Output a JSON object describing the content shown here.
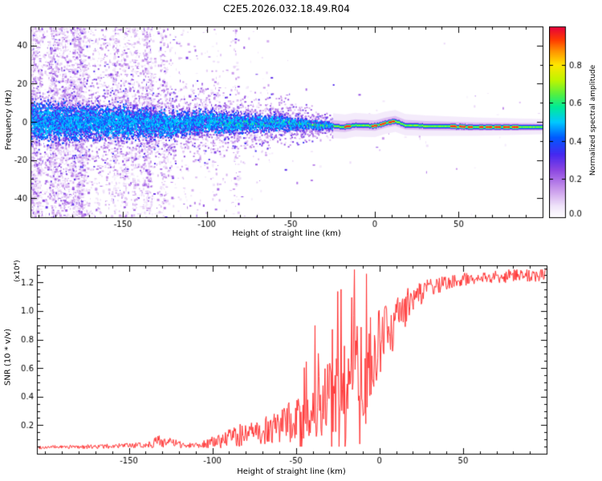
{
  "title": "C2E5.2026.032.18.49.R04",
  "colors": {
    "background": "#ffffff",
    "axis": "#000000",
    "snr_line": "#ff3030"
  },
  "chart_data": [
    {
      "type": "heatmap",
      "title": "C2E5.2026.032.18.49.R04",
      "xlabel": "Height of straight line (km)",
      "ylabel": "Frequency (Hz)",
      "xlim": [
        -205,
        100
      ],
      "ylim": [
        -50,
        50
      ],
      "xticks": [
        -150,
        -100,
        -50,
        0,
        50
      ],
      "yticks": [
        -40,
        -20,
        0,
        20,
        40
      ],
      "grid": false,
      "colorbar": {
        "label": "Normalized spectral amplitude",
        "ticks": [
          0.0,
          0.2,
          0.4,
          0.6,
          0.8
        ],
        "range": [
          0,
          1
        ],
        "position": "right"
      },
      "description": "Spectrogram: broadband purple noise at far negative heights narrowing into a coherent near-0 Hz trace that becomes a thin green line with red high-amplitude dashes at positive heights.",
      "signal": {
        "center_freq_points": [
          [
            -205,
            0.5
          ],
          [
            -150,
            0
          ],
          [
            -120,
            -1
          ],
          [
            -100,
            0.5
          ],
          [
            -80,
            -0.5
          ],
          [
            -60,
            0
          ],
          [
            -40,
            -1
          ],
          [
            -25,
            -2
          ],
          [
            -18,
            -2.5
          ],
          [
            -12,
            -1.5
          ],
          [
            0,
            -2
          ],
          [
            6,
            -0.5
          ],
          [
            12,
            0.5
          ],
          [
            18,
            -1.5
          ],
          [
            30,
            -2
          ],
          [
            60,
            -2.5
          ],
          [
            100,
            -2.5
          ]
        ],
        "half_width_points": [
          [
            -205,
            12
          ],
          [
            -150,
            10
          ],
          [
            -100,
            7
          ],
          [
            -60,
            5
          ],
          [
            -40,
            3.5
          ],
          [
            -25,
            2
          ],
          [
            -15,
            1.4
          ],
          [
            0,
            1.2
          ],
          [
            100,
            1.1
          ]
        ],
        "red_segments": [
          [
            -19,
            -14
          ],
          [
            -2,
            12
          ],
          [
            44,
            58
          ],
          [
            62,
            86
          ]
        ],
        "noise_region": [
          -205,
          -25
        ]
      }
    },
    {
      "type": "line",
      "xlabel": "Height of straight line (km)",
      "ylabel": "SNR (10 * v/v)",
      "ylabel_scale": "(x10⁴)",
      "xlim": [
        -205,
        100
      ],
      "ylim": [
        0,
        1.32
      ],
      "xticks": [
        -150,
        -100,
        -50,
        0,
        50
      ],
      "yticks": [
        0.2,
        0.4,
        0.6,
        0.8,
        1.0,
        1.2
      ],
      "series_color": "#ff3030",
      "grid": false,
      "envelope": [
        [
          -205,
          0.045,
          0.012
        ],
        [
          -170,
          0.05,
          0.015
        ],
        [
          -140,
          0.06,
          0.02
        ],
        [
          -132,
          0.09,
          0.05
        ],
        [
          -126,
          0.08,
          0.04
        ],
        [
          -118,
          0.06,
          0.02
        ],
        [
          -108,
          0.065,
          0.025
        ],
        [
          -100,
          0.08,
          0.04
        ],
        [
          -92,
          0.1,
          0.06
        ],
        [
          -85,
          0.13,
          0.09
        ],
        [
          -78,
          0.13,
          0.08
        ],
        [
          -70,
          0.16,
          0.1
        ],
        [
          -62,
          0.18,
          0.12
        ],
        [
          -55,
          0.22,
          0.14
        ],
        [
          -48,
          0.24,
          0.16
        ],
        [
          -42,
          0.28,
          0.18
        ],
        [
          -36,
          0.33,
          0.22
        ],
        [
          -30,
          0.38,
          0.28
        ],
        [
          -25,
          0.45,
          0.35
        ],
        [
          -20,
          0.5,
          0.42
        ],
        [
          -16,
          0.4,
          0.3
        ],
        [
          -13,
          0.55,
          0.45
        ],
        [
          -10,
          0.6,
          0.35
        ],
        [
          -6,
          0.65,
          0.3
        ],
        [
          -2,
          0.72,
          0.28
        ],
        [
          2,
          0.8,
          0.22
        ],
        [
          8,
          0.9,
          0.18
        ],
        [
          14,
          1.0,
          0.14
        ],
        [
          20,
          1.08,
          0.1
        ],
        [
          28,
          1.15,
          0.07
        ],
        [
          40,
          1.2,
          0.05
        ],
        [
          55,
          1.23,
          0.045
        ],
        [
          70,
          1.24,
          0.045
        ],
        [
          85,
          1.25,
          0.05
        ],
        [
          100,
          1.26,
          0.05
        ]
      ]
    }
  ]
}
